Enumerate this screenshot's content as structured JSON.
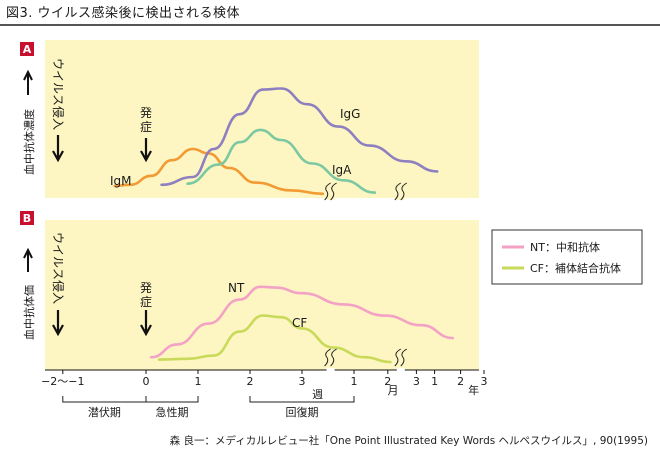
{
  "figure_title": "図3. ウイルス感染後に検出される検体",
  "credit": "森 良一：メディカルレビュー社「One Point Illustrated Key Words ヘルペスウイルス」, 90(1995)",
  "colors": {
    "panel_bg": "#fdf6c2",
    "panel_label_bg": "#c8102e",
    "igm": "#f29a33",
    "igg": "#8e7fc0",
    "iga": "#7cc8a0",
    "nt": "#f3a2c6",
    "cf": "#c9d95a"
  },
  "panel_a": {
    "label": "A",
    "ylabel": "血中抗体濃度",
    "event_virus": "ウイルス侵入",
    "event_onset": "発症"
  },
  "panel_b": {
    "label": "B",
    "ylabel": "血中抗体価",
    "event_virus": "ウイルス侵入",
    "event_onset": "発症"
  },
  "chart_data": [
    {
      "type": "line",
      "panel": "A",
      "series": [
        {
          "name": "IgM",
          "points": [
            [
              -0.6,
              0.09
            ],
            [
              -0.3,
              0.1
            ],
            [
              0.1,
              0.18
            ],
            [
              0.5,
              0.32
            ],
            [
              0.9,
              0.42
            ],
            [
              1.2,
              0.38
            ],
            [
              1.6,
              0.25
            ],
            [
              2.1,
              0.12
            ],
            [
              2.8,
              0.05
            ],
            [
              3.4,
              0.02
            ]
          ]
        },
        {
          "name": "IgG",
          "points": [
            [
              0.3,
              0.1
            ],
            [
              0.9,
              0.17
            ],
            [
              1.3,
              0.42
            ],
            [
              1.8,
              0.73
            ],
            [
              2.25,
              0.95
            ],
            [
              2.6,
              0.96
            ],
            [
              3.1,
              0.82
            ],
            [
              3.7,
              0.62
            ],
            [
              4.3,
              0.45
            ],
            [
              5.0,
              0.31
            ],
            [
              5.6,
              0.22
            ]
          ]
        },
        {
          "name": "IgA",
          "points": [
            [
              0.8,
              0.11
            ],
            [
              1.4,
              0.28
            ],
            [
              1.8,
              0.48
            ],
            [
              2.2,
              0.59
            ],
            [
              2.6,
              0.5
            ],
            [
              3.2,
              0.29
            ],
            [
              3.8,
              0.14
            ],
            [
              4.4,
              0.03
            ]
          ]
        }
      ],
      "breaks_at": [
        3.55,
        4.9
      ]
    },
    {
      "type": "line",
      "panel": "B",
      "series": [
        {
          "name": "NT：中和抗体",
          "label": "NT",
          "points": [
            [
              0.1,
              0.06
            ],
            [
              0.6,
              0.22
            ],
            [
              1.2,
              0.48
            ],
            [
              1.8,
              0.78
            ],
            [
              2.2,
              0.94
            ],
            [
              2.5,
              0.93
            ],
            [
              3.0,
              0.86
            ],
            [
              3.8,
              0.72
            ],
            [
              4.6,
              0.58
            ],
            [
              5.3,
              0.46
            ],
            [
              5.9,
              0.3
            ]
          ]
        },
        {
          "name": "CF：補体結合抗体",
          "label": "CF",
          "points": [
            [
              0.25,
              0.03
            ],
            [
              0.8,
              0.04
            ],
            [
              1.3,
              0.08
            ],
            [
              1.8,
              0.38
            ],
            [
              2.25,
              0.58
            ],
            [
              2.6,
              0.56
            ],
            [
              3.0,
              0.42
            ],
            [
              3.6,
              0.18
            ],
            [
              4.2,
              0.06
            ],
            [
              4.7,
              0.0
            ]
          ]
        }
      ],
      "breaks_at": [
        3.55,
        4.9
      ]
    }
  ],
  "x_axis": {
    "ticks": [
      {
        "x": -1.6,
        "label": "−2〜−1"
      },
      {
        "x": 0,
        "label": "0"
      },
      {
        "x": 1,
        "label": "1"
      },
      {
        "x": 2,
        "label": "2"
      },
      {
        "x": 3,
        "label": "3"
      },
      {
        "x": 4,
        "label": "1"
      },
      {
        "x": 4.65,
        "label": "2"
      },
      {
        "x": 5.2,
        "label": "3"
      },
      {
        "x": 5.55,
        "label": "1"
      },
      {
        "x": 6.05,
        "label": "2"
      },
      {
        "x": 6.5,
        "label": "3"
      }
    ],
    "unit_week": "週",
    "unit_month": "月",
    "unit_year": "年",
    "phases": [
      {
        "label": "潜伏期",
        "from": -1.6,
        "to": 0
      },
      {
        "label": "急性期",
        "from": 0,
        "to": 1
      },
      {
        "label": "回復期",
        "from": 2,
        "to": 4
      }
    ]
  }
}
